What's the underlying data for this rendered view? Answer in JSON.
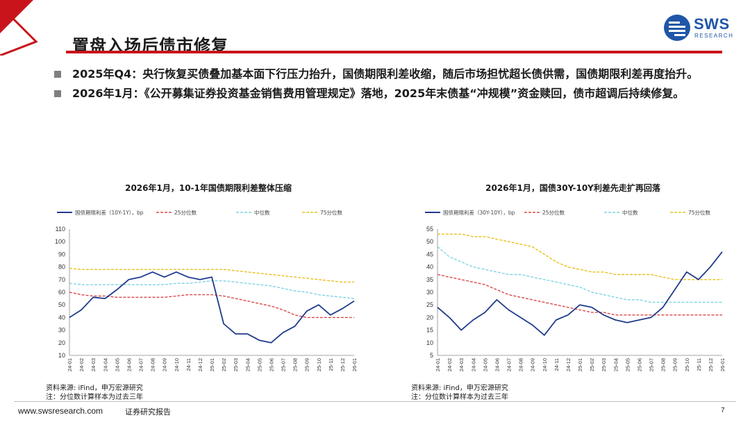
{
  "header": {
    "title": "置盘入场后债市修复",
    "logo_text": "SWS",
    "logo_sub": "RESEARCH"
  },
  "bullets": [
    {
      "text": "2025年Q4：央行恢复买债叠加基本面下行压力抬升，国债期限利差收缩，随后市场担忧超长债供需，国债期限利差再度抬升。"
    },
    {
      "text": "2026年1月：《公开募集证券投资基金销售费用管理规定》落地，2025年末债基“冲规模”资金赎回，债市超调后持续修复。"
    }
  ],
  "colors": {
    "accent_red": "#c8141a",
    "brand_blue": "#1f56a8",
    "main_line": "#1f3b8c",
    "p25": "#d9484a",
    "median": "#7ed3e3",
    "p75": "#e6c01c"
  },
  "chart_data": [
    {
      "type": "line",
      "title": "2026年1月，10-1年国债期限利差整体压缩",
      "ylim": [
        10,
        110
      ],
      "yticks": [
        "110",
        "100",
        "90",
        "80",
        "70",
        "60",
        "50",
        "40",
        "30",
        "20",
        "10"
      ],
      "categories": [
        "24-01",
        "24-02",
        "24-03",
        "24-04",
        "24-05",
        "24-06",
        "24-07",
        "24-08",
        "24-09",
        "24-10",
        "24-11",
        "24-12",
        "25-01",
        "25-02",
        "25-03",
        "25-04",
        "25-05",
        "25-06",
        "25-07",
        "25-08",
        "25-09",
        "25-10",
        "25-11",
        "25-12",
        "26-01"
      ],
      "series": [
        {
          "name": "国债期限利差（10Y-1Y），bp",
          "values": [
            40,
            46,
            56,
            55,
            62,
            70,
            72,
            76,
            72,
            76,
            72,
            70,
            72,
            35,
            27,
            27,
            22,
            20,
            28,
            33,
            45,
            50,
            42,
            47,
            53
          ]
        },
        {
          "name": "25分位数",
          "values": [
            60,
            58,
            57,
            57,
            56,
            56,
            56,
            56,
            56,
            57,
            58,
            58,
            58,
            57,
            55,
            53,
            51,
            49,
            46,
            42,
            40,
            40,
            40,
            40,
            40
          ]
        },
        {
          "name": "中位数",
          "values": [
            67,
            66,
            66,
            66,
            66,
            66,
            66,
            66,
            66,
            67,
            67,
            68,
            69,
            69,
            68,
            67,
            66,
            65,
            63,
            61,
            60,
            58,
            57,
            56,
            55
          ]
        },
        {
          "name": "75分位数",
          "values": [
            79,
            78,
            78,
            78,
            78,
            78,
            78,
            78,
            78,
            78,
            78,
            78,
            78,
            78,
            77,
            76,
            75,
            74,
            73,
            72,
            71,
            70,
            69,
            68,
            68
          ]
        }
      ],
      "source": "资料来源: iFind，申万宏源研究",
      "note": "注：分位数计算样本为过去三年"
    },
    {
      "type": "line",
      "title": "2026年1月，国债30Y-10Y利差先走扩再回落",
      "ylim": [
        5,
        55
      ],
      "yticks": [
        "55",
        "50",
        "45",
        "40",
        "35",
        "30",
        "25",
        "20",
        "15",
        "10",
        "5"
      ],
      "categories": [
        "24-01",
        "24-02",
        "24-03",
        "24-04",
        "24-05",
        "24-06",
        "24-07",
        "24-08",
        "24-09",
        "24-10",
        "24-11",
        "24-12",
        "25-01",
        "25-02",
        "25-03",
        "25-04",
        "25-05",
        "25-06",
        "25-07",
        "25-08",
        "25-09",
        "25-10",
        "25-11",
        "25-12",
        "26-01"
      ],
      "series": [
        {
          "name": "国债期限利差（30Y-10Y），bp",
          "values": [
            24,
            20,
            15,
            19,
            22,
            27,
            23,
            20,
            17,
            13,
            19,
            21,
            25,
            24,
            21,
            19,
            18,
            19,
            20,
            24,
            31,
            38,
            35,
            40,
            46
          ]
        },
        {
          "name": "25分位数",
          "values": [
            37,
            36,
            35,
            34,
            33,
            31,
            29,
            28,
            27,
            26,
            25,
            24,
            23,
            22,
            22,
            21,
            21,
            21,
            21,
            21,
            21,
            21,
            21,
            21,
            21
          ]
        },
        {
          "name": "中位数",
          "values": [
            48,
            44,
            42,
            40,
            39,
            38,
            37,
            37,
            36,
            35,
            34,
            33,
            32,
            30,
            29,
            28,
            27,
            27,
            26,
            26,
            26,
            26,
            26,
            26,
            26
          ]
        },
        {
          "name": "75分位数",
          "values": [
            53,
            53,
            53,
            52,
            52,
            51,
            50,
            49,
            48,
            45,
            42,
            40,
            39,
            38,
            38,
            37,
            37,
            37,
            37,
            36,
            35,
            35,
            35,
            35,
            35
          ]
        }
      ],
      "source": "资料来源: iFind，申万宏源研究",
      "note": "注：分位数计算样本为过去三年"
    }
  ],
  "footer": {
    "url": "www.swsresearch.com",
    "label": "证券研究报告",
    "page": "7"
  }
}
